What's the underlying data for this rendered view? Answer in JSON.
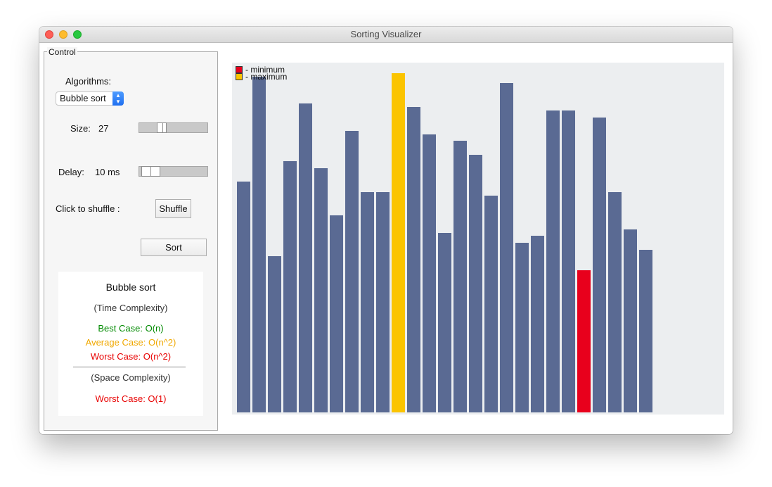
{
  "window": {
    "title": "Sorting Visualizer"
  },
  "control": {
    "legend": "Control",
    "algorithms_label": "Algorithms:",
    "algorithm_selected": "Bubble sort",
    "size_label": "Size:",
    "size_value": "27",
    "size_slider_fraction": 0.29,
    "delay_label": "Delay:",
    "delay_value": "10 ms",
    "delay_slider_fraction": 0.13,
    "shuffle_label": "Click to shuffle :",
    "shuffle_button": "Shuffle",
    "sort_button": "Sort"
  },
  "info": {
    "name": "Bubble sort",
    "time_header": "(Time Complexity)",
    "best": "Best Case: O(n)",
    "average": "Average Case: O(n^2)",
    "worst": "Worst Case: O(n^2)",
    "space_header": "(Space Complexity)",
    "space_worst": "Worst Case: O(1)",
    "colors": {
      "best": "#008a00",
      "average": "#f0a800",
      "worst": "#e80000"
    }
  },
  "chart_data": {
    "type": "bar",
    "legend": [
      {
        "label": "- minimum",
        "color": "#e8001c"
      },
      {
        "label": "- maximum",
        "color": "#fbc400"
      }
    ],
    "bar_color": "#5a6a93",
    "ylim": [
      0,
      100
    ],
    "values": [
      68,
      99,
      46,
      74,
      91,
      72,
      58,
      83,
      65,
      65,
      100,
      90,
      82,
      53,
      80,
      76,
      64,
      97,
      50,
      52,
      89,
      89,
      42,
      87,
      65,
      54,
      48
    ],
    "highlight": {
      "maximum_index": 10,
      "minimum_index": 22
    }
  }
}
